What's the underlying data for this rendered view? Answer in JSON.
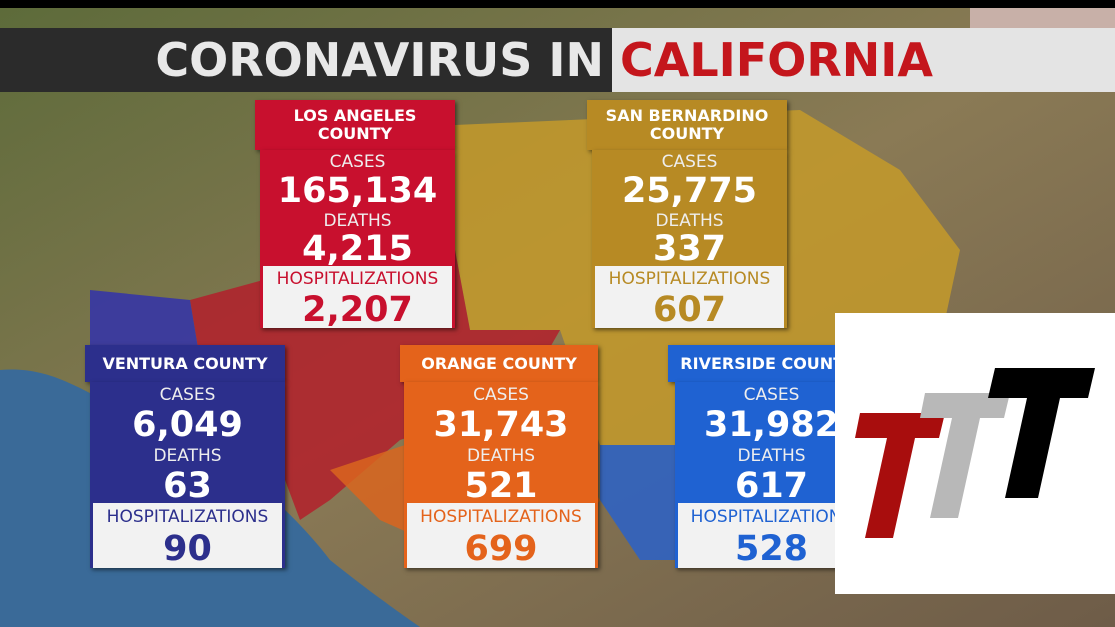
{
  "header": {
    "title_part1": "CORONAVIRUS IN",
    "title_part2": "CALIFORNIA"
  },
  "counties": [
    {
      "name": "LOS ANGELES COUNTY",
      "cases_label": "CASES",
      "cases": "165,134",
      "deaths_label": "DEATHS",
      "deaths": "4,215",
      "hosp_label": "HOSPITALIZATIONS",
      "hospitalizations": "2,207"
    },
    {
      "name": "SAN BERNARDINO COUNTY",
      "cases_label": "CASES",
      "cases": "25,775",
      "deaths_label": "DEATHS",
      "deaths": "337",
      "hosp_label": "HOSPITALIZATIONS",
      "hospitalizations": "607"
    },
    {
      "name": "VENTURA COUNTY",
      "cases_label": "CASES",
      "cases": "6,049",
      "deaths_label": "DEATHS",
      "deaths": "63",
      "hosp_label": "HOSPITALIZATIONS",
      "hospitalizations": "90"
    },
    {
      "name": "ORANGE COUNTY",
      "cases_label": "CASES",
      "cases": "31,743",
      "deaths_label": "DEATHS",
      "deaths": "521",
      "hosp_label": "HOSPITALIZATIONS",
      "hospitalizations": "699"
    },
    {
      "name": "RIVERSIDE COUNTY",
      "cases_label": "CASES",
      "cases": "31,982",
      "deaths_label": "DEATHS",
      "deaths": "617",
      "hosp_label": "HOSPITALIZATIONS",
      "hospitalizations": "528"
    }
  ]
}
